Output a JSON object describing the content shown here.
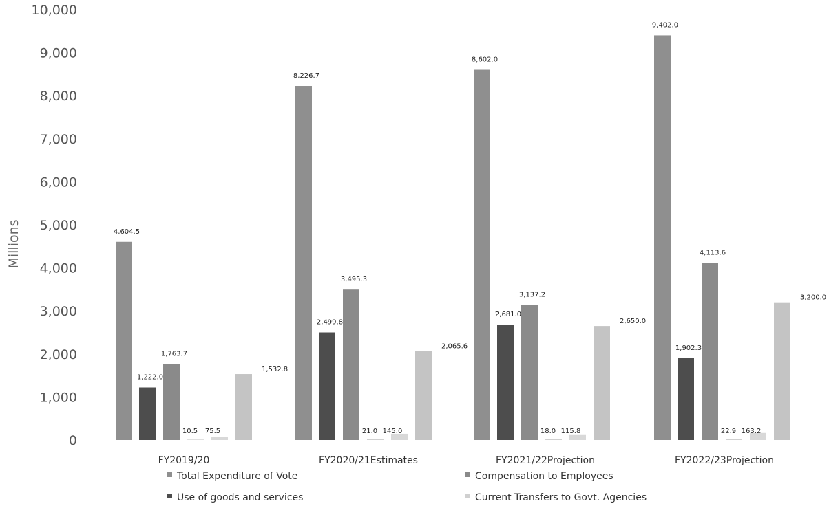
{
  "chart_data": {
    "type": "bar",
    "title": "",
    "xlabel": "",
    "ylabel": "Millions",
    "ylim": [
      0,
      10000
    ],
    "yticks": [
      "0",
      "1,000",
      "2,000",
      "3,000",
      "4,000",
      "5,000",
      "6,000",
      "7,000",
      "8,000",
      "9,000",
      "10,000"
    ],
    "categories": [
      "FY2019/20",
      "FY2020/21Estimates",
      "FY2021/22Projection",
      "FY2022/23Projection"
    ],
    "series": [
      {
        "name": "Total Expenditure of Vote",
        "color": "#8f8f8f",
        "values": [
          4604.5,
          8226.7,
          8602.0,
          9402.0
        ],
        "labels": [
          "4,604.5",
          "8,226.7",
          "8,602.0",
          "9,402.0"
        ]
      },
      {
        "name": "Use of goods and services",
        "color": "#4d4d4d",
        "values": [
          1222.0,
          2499.8,
          2681.0,
          1902.3
        ],
        "labels": [
          "1,222.0",
          "2,499.8",
          "2,681.0",
          "1,902.3"
        ]
      },
      {
        "name": "Compensation to Employees",
        "color": "#8a8a8a",
        "values": [
          1763.7,
          3495.3,
          3137.2,
          4113.6
        ],
        "labels": [
          "1,763.7",
          "3,495.3",
          "3,137.2",
          "4,113.6"
        ]
      },
      {
        "name": "Current Transfers to Govt. Agencies",
        "color": "#d0d0d0",
        "values": [
          10.5,
          21.0,
          18.0,
          22.9
        ],
        "labels": [
          "10.5",
          "21.0",
          "18.0",
          "22.9"
        ]
      },
      {
        "name": "",
        "color": "#d8d8d8",
        "values": [
          75.5,
          145.0,
          115.8,
          163.2
        ],
        "labels": [
          "75.5",
          "145.0",
          "115.8",
          "163.2"
        ]
      },
      {
        "name": "",
        "color": "#c4c4c4",
        "values": [
          1532.8,
          2065.6,
          2650.0,
          3200.0
        ],
        "labels": [
          "1,532.8",
          "2,065.6",
          "2,650.0",
          "3,200.0"
        ]
      }
    ],
    "grid": false,
    "legend": "bottom"
  }
}
